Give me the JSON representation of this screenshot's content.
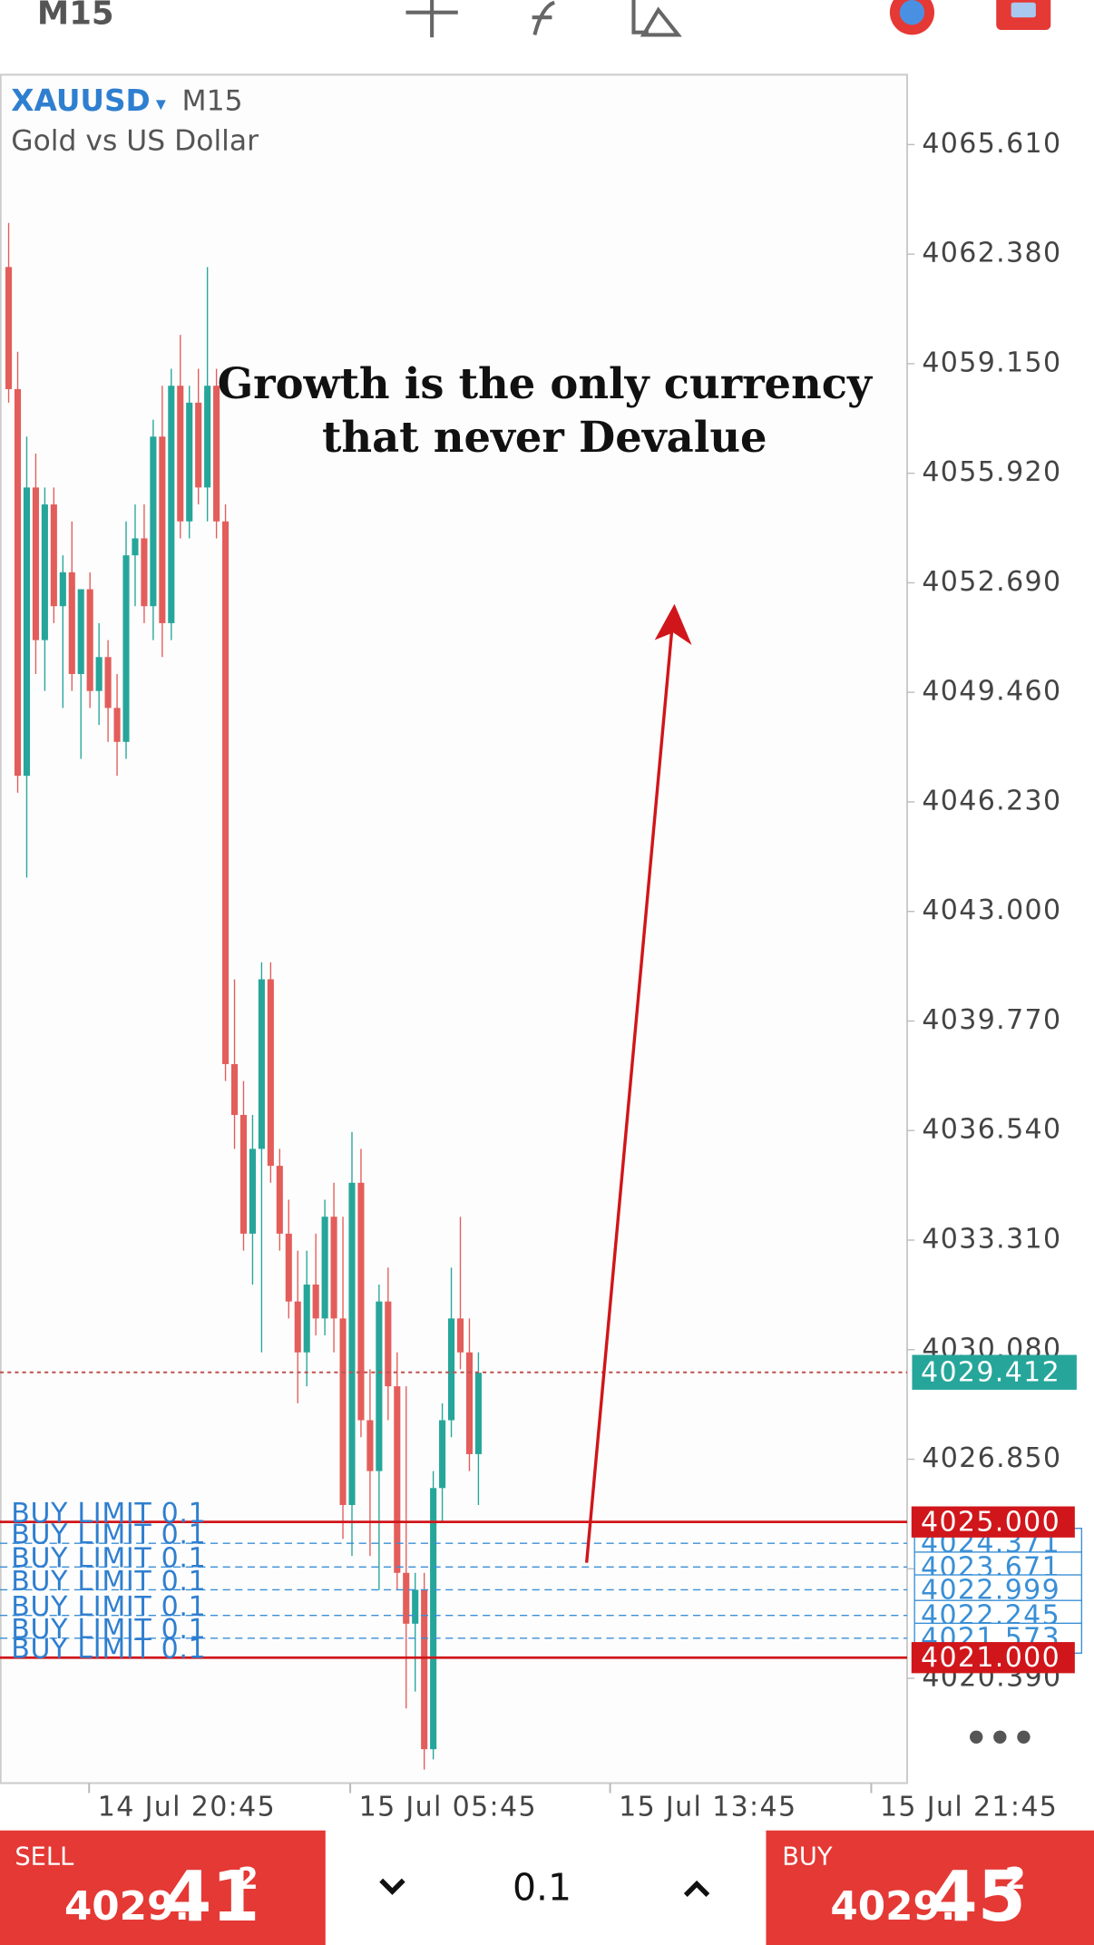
{
  "toolbar": {
    "timeframe": "M15"
  },
  "chart": {
    "symbol": "XAUUSD",
    "timeframe": "M15",
    "description": "Gold vs US Dollar",
    "annotation": [
      "Growth is the only currency",
      "that never Devalue"
    ],
    "up_color": "#26a69a",
    "down_color": "#e35d5b",
    "candles": {
      "open": [
        4062.0,
        4058.4,
        4047.0,
        4055.5,
        4051.0,
        4055.0,
        4052.0,
        4053.0,
        4050.0,
        4052.5,
        4049.5,
        4050.5,
        4049.0,
        4048.0,
        4053.5,
        4054.0,
        4052.0,
        4057.0,
        4051.5,
        4058.5,
        4054.5,
        4058.0,
        4055.5,
        4058.5,
        4054.5,
        4038.5,
        4037.0,
        4033.5,
        4036.0,
        4041.0,
        4035.5,
        4033.5,
        4031.5,
        4030.0,
        4032.0,
        4031.0,
        4034.0,
        4031.0,
        4025.5,
        4035.0,
        4028.0,
        4026.5,
        4031.5,
        4029.0,
        4023.5,
        4022.0,
        4023.0,
        4018.3,
        4026.0,
        4028.0,
        4031.0,
        4030.0,
        4027.0
      ],
      "high": [
        4063.3,
        4059.5,
        4057.0,
        4056.5,
        4055.5,
        4055.5,
        4053.5,
        4054.5,
        4052.5,
        4053.0,
        4051.5,
        4051.0,
        4050.0,
        4054.5,
        4055.0,
        4055.0,
        4057.5,
        4058.5,
        4059.0,
        4060.0,
        4058.5,
        4059.0,
        4062.0,
        4059.0,
        4055.0,
        4041.0,
        4038.0,
        4037.0,
        4041.5,
        4041.5,
        4036.0,
        4034.5,
        4033.0,
        4033.0,
        4033.5,
        4034.5,
        4035.0,
        4034.0,
        4036.5,
        4036.0,
        4029.5,
        4032.0,
        4032.5,
        4030.0,
        4029.0,
        4023.5,
        4023.5,
        4026.5,
        4028.5,
        4032.5,
        4034.0,
        4031.0,
        4030.0
      ],
      "low": [
        4058.0,
        4046.5,
        4044.0,
        4050.0,
        4049.5,
        4051.5,
        4049.0,
        4049.5,
        4047.5,
        4049.0,
        4048.5,
        4048.0,
        4047.0,
        4047.5,
        4052.0,
        4051.5,
        4051.0,
        4050.5,
        4051.0,
        4054.0,
        4054.0,
        4055.0,
        4054.5,
        4054.0,
        4038.0,
        4036.0,
        4033.0,
        4032.0,
        4030.0,
        4035.0,
        4033.0,
        4031.0,
        4028.5,
        4029.0,
        4030.5,
        4030.5,
        4030.0,
        4024.5,
        4024.0,
        4027.5,
        4024.0,
        4023.0,
        4028.0,
        4023.0,
        4019.5,
        4020.0,
        4017.7,
        4018.0,
        4025.0,
        4027.5,
        4029.5,
        4026.5,
        4025.5
      ],
      "close": [
        4058.4,
        4047.0,
        4055.5,
        4051.0,
        4055.0,
        4052.0,
        4053.0,
        4050.0,
        4052.5,
        4049.5,
        4050.5,
        4049.0,
        4048.0,
        4053.5,
        4054.0,
        4052.0,
        4057.0,
        4051.5,
        4058.5,
        4054.5,
        4058.0,
        4055.5,
        4058.5,
        4054.5,
        4038.5,
        4037.0,
        4033.5,
        4036.0,
        4041.0,
        4035.5,
        4033.5,
        4031.5,
        4030.0,
        4032.0,
        4031.0,
        4034.0,
        4031.0,
        4025.5,
        4035.0,
        4028.0,
        4026.5,
        4031.5,
        4029.0,
        4023.5,
        4022.0,
        4023.0,
        4018.3,
        4026.0,
        4028.0,
        4031.0,
        4030.0,
        4027.0,
        4029.4
      ]
    },
    "ylim": [
      4017.3,
      4067.67
    ],
    "yticks": [
      {
        "value": 4065.61,
        "label": "4065.610"
      },
      {
        "value": 4062.38,
        "label": "4062.380"
      },
      {
        "value": 4059.15,
        "label": "4059.150"
      },
      {
        "value": 4055.92,
        "label": "4055.920"
      },
      {
        "value": 4052.69,
        "label": "4052.690"
      },
      {
        "value": 4049.46,
        "label": "4049.460"
      },
      {
        "value": 4046.23,
        "label": "4046.230"
      },
      {
        "value": 4043.0,
        "label": "4043.000"
      },
      {
        "value": 4039.77,
        "label": "4039.770"
      },
      {
        "value": 4036.54,
        "label": "4036.540"
      },
      {
        "value": 4033.31,
        "label": "4033.310"
      },
      {
        "value": 4030.08,
        "label": "4030.080"
      },
      {
        "value": 4026.85,
        "label": "4026.850"
      },
      {
        "value": 4023.62,
        "label": "4023.620"
      },
      {
        "value": 4020.39,
        "label": "4020.390"
      }
    ],
    "xtick_labels": [
      "14 Jul 20:45",
      "15 Jul 05:45",
      "15 Jul 13:45",
      "15 Jul 21:45"
    ],
    "current_price": {
      "value": 4029.412,
      "label": "4029.412",
      "color": "#26a69a"
    },
    "orders": [
      {
        "price": 4025.0,
        "label": "4025.000",
        "text": "BUY LIMIT 0.1",
        "color": "#d0161b",
        "line_style": "solid"
      },
      {
        "price": 4024.371,
        "label": "4024.371",
        "text": "BUY LIMIT 0.1",
        "color": "#3a8fd6",
        "line_style": "dashed"
      },
      {
        "price": 4023.671,
        "label": "4023.671",
        "text": "BUY LIMIT 0.1",
        "color": "#3a8fd6",
        "line_style": "dashed"
      },
      {
        "price": 4022.999,
        "label": "4022.999",
        "text": "BUY LIMIT 0.1",
        "color": "#3a8fd6",
        "line_style": "dashed"
      },
      {
        "price": 4022.245,
        "label": "4022.245",
        "text": "BUY LIMIT 0.1",
        "color": "#3a8fd6",
        "line_style": "dashed"
      },
      {
        "price": 4021.573,
        "label": "4021.573",
        "text": "BUY LIMIT 0.1",
        "color": "#3a8fd6",
        "line_style": "dashed"
      },
      {
        "price": 4021.0,
        "label": "4021.000",
        "text": "BUY LIMIT 0.1",
        "color": "#d0161b",
        "line_style": "solid"
      }
    ]
  },
  "trade_bar": {
    "sell": {
      "label": "SELL",
      "price_main": "4029.",
      "price_big": "41",
      "price_sup": "2"
    },
    "volume": "0.1",
    "buy": {
      "label": "BUY",
      "price_main": "4029.",
      "price_big": "45",
      "price_sup": "2"
    }
  }
}
